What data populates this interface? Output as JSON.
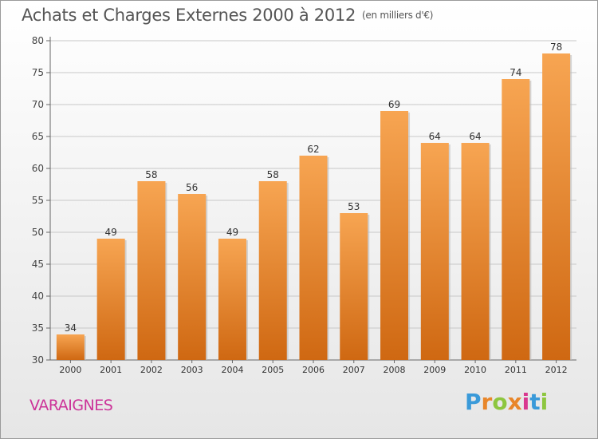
{
  "header": {
    "title": "Achats et Charges Externes 2000 à 2012",
    "unit": "(en milliers d'€)"
  },
  "footer": {
    "commune": "VARAIGNES",
    "logo_text": "Proxiti"
  },
  "colors": {
    "bar_top": "#f7a552",
    "bar_bottom": "#cf6812",
    "commune": "#cc3399",
    "logo_letters": [
      "#3a9ad9",
      "#e8862a",
      "#8dc63f",
      "#e8862a",
      "#d9388f",
      "#3a9ad9",
      "#8dc63f"
    ]
  },
  "chart_data": {
    "type": "bar",
    "categories": [
      "2000",
      "2001",
      "2002",
      "2003",
      "2004",
      "2005",
      "2006",
      "2007",
      "2008",
      "2009",
      "2010",
      "2011",
      "2012"
    ],
    "values": [
      34,
      49,
      58,
      56,
      49,
      58,
      62,
      53,
      69,
      64,
      64,
      74,
      78
    ],
    "ylim": [
      30,
      80
    ],
    "yticks": [
      30,
      35,
      40,
      45,
      50,
      55,
      60,
      65,
      70,
      75,
      80
    ],
    "grid": true,
    "data_labels": true
  }
}
